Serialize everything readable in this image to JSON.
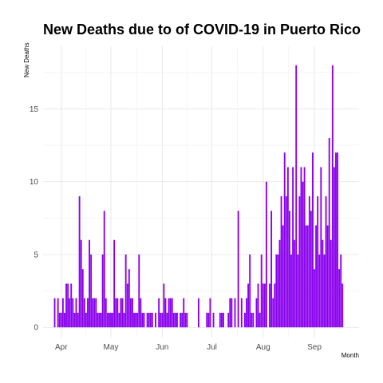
{
  "chart_data": {
    "type": "bar",
    "title": "New Deaths due to of COVID-19 in Puerto Rico",
    "xlabel": "Month",
    "ylabel": "New Deaths",
    "ylim": [
      -0.7,
      19.3
    ],
    "xlim": [
      "2020-03-21",
      "2020-09-28"
    ],
    "x_ticks": [
      {
        "date": "2020-04-01",
        "label": "Apr"
      },
      {
        "date": "2020-05-01",
        "label": "May"
      },
      {
        "date": "2020-06-01",
        "label": "Jun"
      },
      {
        "date": "2020-07-01",
        "label": "Jul"
      },
      {
        "date": "2020-08-01",
        "label": "Aug"
      },
      {
        "date": "2020-09-01",
        "label": "Sep"
      }
    ],
    "y_ticks": [
      0,
      5,
      10,
      15
    ],
    "grid": true,
    "bar_color": "#8a00ee",
    "start_date": "2020-03-28",
    "values": [
      2,
      0,
      2,
      1,
      1,
      2,
      1,
      3,
      3,
      2,
      3,
      2,
      1,
      2,
      1,
      9,
      6,
      4,
      2,
      1,
      2,
      6,
      5,
      2,
      2,
      2,
      1,
      1,
      1,
      5,
      8,
      2,
      1,
      1,
      1,
      1,
      6,
      2,
      2,
      1,
      2,
      2,
      1,
      5,
      3,
      4,
      2,
      2,
      1,
      1,
      1,
      5,
      2,
      1,
      1,
      0,
      1,
      1,
      1,
      1,
      0,
      1,
      0,
      2,
      1,
      1,
      3,
      2,
      1,
      2,
      2,
      2,
      1,
      1,
      1,
      0,
      1,
      1,
      2,
      1,
      1,
      0,
      0,
      0,
      0,
      0,
      0,
      2,
      0,
      0,
      0,
      0,
      1,
      1,
      2,
      0,
      1,
      0,
      0,
      0,
      1,
      1,
      1,
      0,
      0,
      1,
      2,
      2,
      0,
      2,
      0,
      8,
      0,
      2,
      0,
      1,
      2,
      3,
      5,
      1,
      1,
      0,
      2,
      3,
      1,
      5,
      3,
      3,
      10,
      0,
      3,
      8,
      2,
      3,
      5,
      5,
      6,
      9,
      7,
      12,
      9,
      11,
      8,
      5,
      11,
      6,
      18,
      5,
      9,
      11,
      10,
      11,
      7,
      7,
      9,
      8,
      12,
      4,
      7,
      9,
      5,
      11,
      6,
      5,
      9,
      7,
      13,
      6,
      18,
      11,
      12,
      12,
      4,
      5,
      3
    ]
  }
}
